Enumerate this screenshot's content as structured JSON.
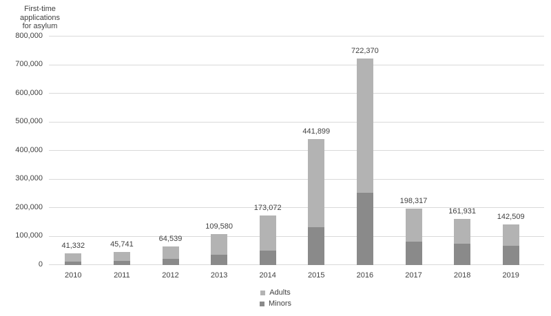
{
  "chart_data": {
    "type": "bar",
    "stacked": true,
    "title": "First-time applications for asylum",
    "title_lines": [
      "First-time",
      "applications",
      "for asylum"
    ],
    "categories": [
      "2010",
      "2011",
      "2012",
      "2013",
      "2014",
      "2015",
      "2016",
      "2017",
      "2018",
      "2019"
    ],
    "series": [
      {
        "name": "Adults",
        "color": "#b3b3b3",
        "values": [
          30332,
          30741,
          42539,
          74580,
          122072,
          308899,
          470370,
          116317,
          86931,
          75509
        ]
      },
      {
        "name": "Minors",
        "color": "#8a8a8a",
        "values": [
          11000,
          15000,
          22000,
          35000,
          51000,
          133000,
          252000,
          82000,
          75000,
          67000
        ]
      }
    ],
    "totals": [
      41332,
      45741,
      64539,
      109580,
      173072,
      441899,
      722370,
      198317,
      161931,
      142509
    ],
    "total_labels": [
      "41,332",
      "45,741",
      "64,539",
      "109,580",
      "173,072",
      "441,899",
      "722,370",
      "198,317",
      "161,931",
      "142,509"
    ],
    "ylim": [
      0,
      800000
    ],
    "ytick_interval": 100000,
    "ytick_labels": [
      "0",
      "100,000",
      "200,000",
      "300,000",
      "400,000",
      "500,000",
      "600,000",
      "700,000",
      "800,000"
    ],
    "grid": true,
    "grid_color": "#d9d9d9",
    "text_color": "#404040",
    "legend_position": "bottom",
    "legend_items": [
      "Adults",
      "Minors"
    ]
  }
}
